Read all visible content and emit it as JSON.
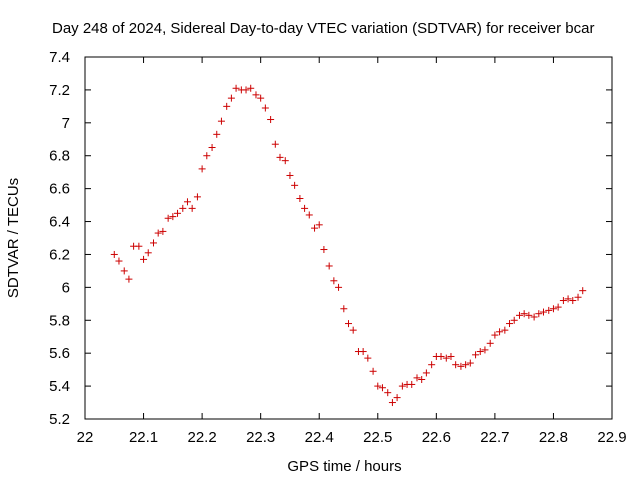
{
  "chart_data": {
    "type": "scatter",
    "title": "Day 248 of 2024, Sidereal Day-to-day VTEC variation (SDTVAR) for receiver bcar",
    "xlabel": "GPS time / hours",
    "ylabel": "SDTVAR / TECUs",
    "xlim": [
      22,
      22.9
    ],
    "ylim": [
      5.2,
      7.4
    ],
    "xticks": [
      "22",
      "22.1",
      "22.2",
      "22.3",
      "22.4",
      "22.5",
      "22.6",
      "22.7",
      "22.8",
      "22.9"
    ],
    "yticks": [
      "5.2",
      "5.4",
      "5.6",
      "5.8",
      "6",
      "6.2",
      "6.4",
      "6.6",
      "6.8",
      "7",
      "7.2",
      "7.4"
    ],
    "marker": "+",
    "series": [
      {
        "name": "SDTVAR",
        "color": "#cc0000",
        "x": [
          22.05,
          22.058,
          22.067,
          22.075,
          22.083,
          22.092,
          22.1,
          22.108,
          22.117,
          22.125,
          22.133,
          22.142,
          22.15,
          22.158,
          22.167,
          22.175,
          22.183,
          22.192,
          22.2,
          22.208,
          22.217,
          22.225,
          22.233,
          22.242,
          22.25,
          22.258,
          22.267,
          22.275,
          22.283,
          22.292,
          22.3,
          22.308,
          22.317,
          22.325,
          22.333,
          22.342,
          22.35,
          22.358,
          22.367,
          22.375,
          22.383,
          22.392,
          22.4,
          22.408,
          22.417,
          22.425,
          22.433,
          22.442,
          22.45,
          22.458,
          22.467,
          22.475,
          22.483,
          22.492,
          22.5,
          22.508,
          22.517,
          22.525,
          22.533,
          22.542,
          22.55,
          22.558,
          22.567,
          22.575,
          22.583,
          22.592,
          22.6,
          22.608,
          22.617,
          22.625,
          22.633,
          22.642,
          22.65,
          22.658,
          22.667,
          22.675,
          22.683,
          22.692,
          22.7,
          22.708,
          22.717,
          22.725,
          22.733,
          22.742,
          22.75,
          22.758,
          22.767,
          22.775,
          22.783,
          22.792,
          22.8,
          22.808,
          22.817,
          22.825,
          22.833,
          22.842,
          22.85
        ],
        "y": [
          6.2,
          6.16,
          6.1,
          6.05,
          6.25,
          6.25,
          6.17,
          6.21,
          6.27,
          6.33,
          6.34,
          6.42,
          6.43,
          6.45,
          6.48,
          6.52,
          6.48,
          6.55,
          6.72,
          6.8,
          6.85,
          6.93,
          7.01,
          7.1,
          7.15,
          7.21,
          7.2,
          7.2,
          7.21,
          7.17,
          7.15,
          7.09,
          7.02,
          6.87,
          6.79,
          6.77,
          6.68,
          6.62,
          6.54,
          6.48,
          6.44,
          6.36,
          6.38,
          6.23,
          6.13,
          6.04,
          6.0,
          5.87,
          5.78,
          5.74,
          5.61,
          5.61,
          5.57,
          5.49,
          5.4,
          5.39,
          5.36,
          5.3,
          5.33,
          5.4,
          5.41,
          5.41,
          5.45,
          5.44,
          5.48,
          5.53,
          5.58,
          5.58,
          5.57,
          5.58,
          5.53,
          5.52,
          5.53,
          5.54,
          5.59,
          5.61,
          5.62,
          5.66,
          5.71,
          5.73,
          5.74,
          5.78,
          5.8,
          5.83,
          5.84,
          5.83,
          5.82,
          5.84,
          5.85,
          5.86,
          5.87,
          5.88,
          5.92,
          5.93,
          5.92,
          5.94,
          5.98
        ]
      }
    ]
  }
}
